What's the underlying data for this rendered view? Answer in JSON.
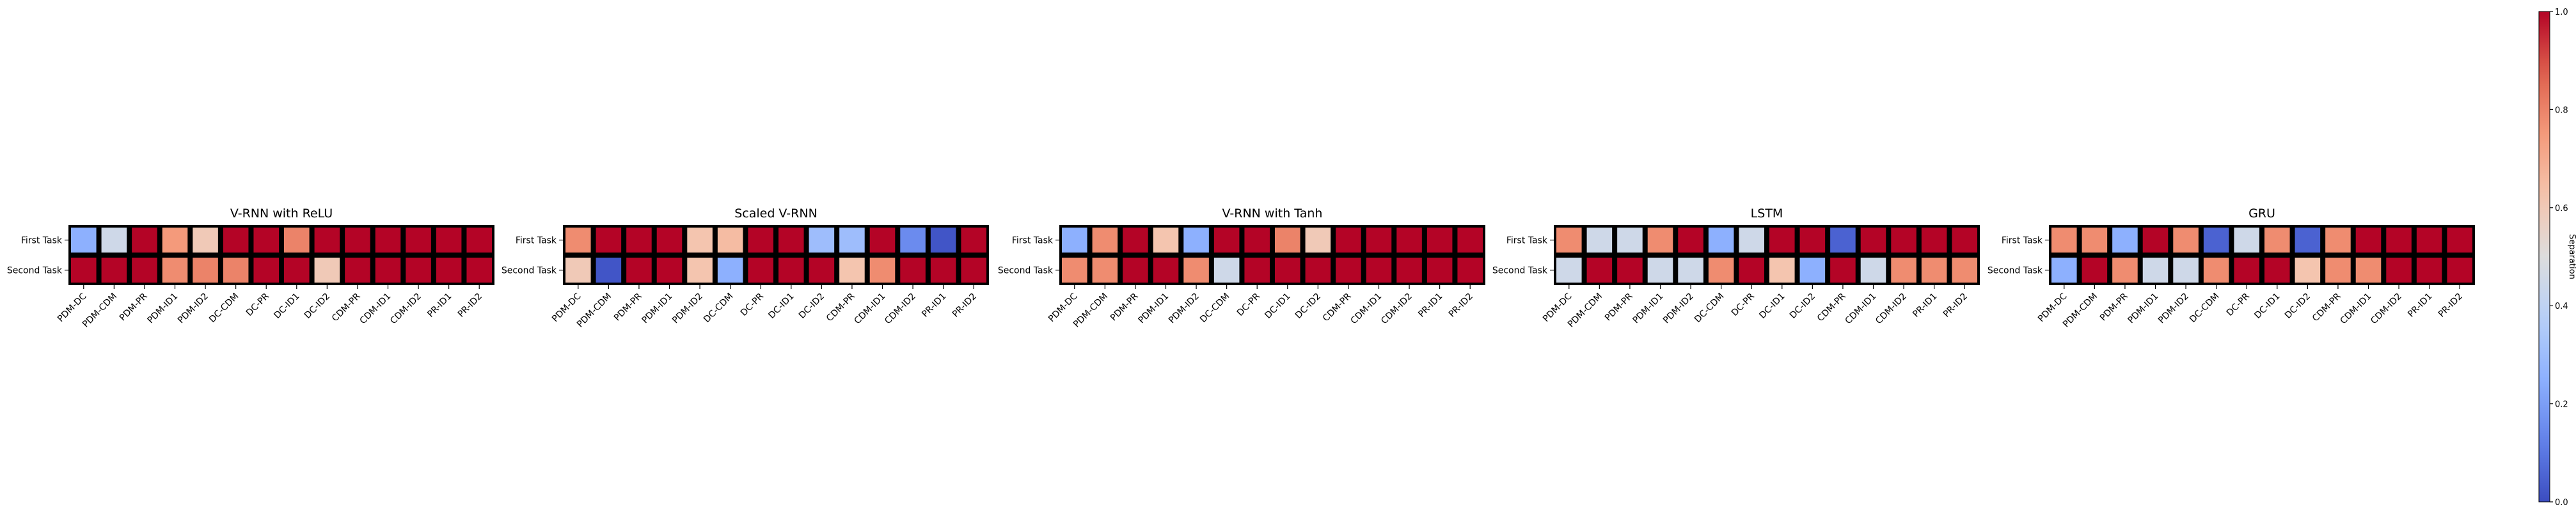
{
  "chart_data": {
    "type": "heatmap",
    "colorbar": {
      "label": "Separation",
      "range": [
        0.0,
        1.0
      ],
      "ticks": [
        0.0,
        0.2,
        0.4,
        0.6,
        0.8,
        1.0
      ],
      "tick_labels": [
        "0.0",
        "0.2",
        "0.4",
        "0.6",
        "0.8",
        "1.0"
      ],
      "colormap": "coolwarm"
    },
    "x_categories": [
      "PDM-DC",
      "PDM-CDM",
      "PDM-PR",
      "PDM-ID1",
      "PDM-ID2",
      "DC-CDM",
      "DC-PR",
      "DC-ID1",
      "DC-ID2",
      "CDM-PR",
      "CDM-ID1",
      "CDM-ID2",
      "PR-ID1",
      "PR-ID2"
    ],
    "y_categories": [
      "First Task",
      "Second Task"
    ],
    "panels": [
      {
        "title": "V-RNN with ReLU",
        "values": [
          [
            0.25,
            0.45,
            1.0,
            0.75,
            0.6,
            1.0,
            1.0,
            0.8,
            1.0,
            1.0,
            1.0,
            1.0,
            1.0,
            1.0
          ],
          [
            1.0,
            1.0,
            1.0,
            0.78,
            0.8,
            0.8,
            1.0,
            1.0,
            0.6,
            1.0,
            1.0,
            1.0,
            1.0,
            1.0
          ]
        ]
      },
      {
        "title": "Scaled V-RNN",
        "values": [
          [
            0.78,
            1.0,
            1.0,
            1.0,
            0.62,
            0.65,
            1.0,
            1.0,
            0.3,
            0.3,
            1.0,
            0.15,
            0.02,
            1.0
          ],
          [
            0.6,
            0.02,
            1.0,
            1.0,
            0.62,
            0.25,
            1.0,
            1.0,
            1.0,
            0.62,
            0.78,
            1.0,
            1.0,
            1.0
          ]
        ]
      },
      {
        "title": "V-RNN with Tanh",
        "values": [
          [
            0.25,
            0.78,
            1.0,
            0.62,
            0.25,
            1.0,
            1.0,
            0.8,
            0.6,
            1.0,
            1.0,
            1.0,
            1.0,
            1.0
          ],
          [
            0.78,
            0.78,
            1.0,
            1.0,
            0.78,
            0.45,
            1.0,
            1.0,
            1.0,
            1.0,
            1.0,
            1.0,
            1.0,
            1.0
          ]
        ]
      },
      {
        "title": "LSTM",
        "values": [
          [
            0.78,
            0.45,
            0.45,
            0.78,
            1.0,
            0.25,
            0.45,
            1.0,
            1.0,
            0.05,
            1.0,
            1.0,
            1.0,
            1.0
          ],
          [
            0.45,
            1.0,
            1.0,
            0.45,
            0.45,
            0.78,
            1.0,
            0.62,
            0.25,
            1.0,
            0.45,
            0.78,
            0.78,
            0.78
          ]
        ]
      },
      {
        "title": "GRU",
        "values": [
          [
            0.78,
            0.78,
            0.25,
            1.0,
            0.78,
            0.05,
            0.45,
            0.78,
            0.05,
            0.78,
            1.0,
            1.0,
            1.0,
            1.0
          ],
          [
            0.25,
            1.0,
            0.78,
            0.45,
            0.45,
            0.78,
            1.0,
            1.0,
            0.62,
            0.78,
            0.78,
            1.0,
            1.0,
            1.0
          ]
        ]
      }
    ]
  }
}
